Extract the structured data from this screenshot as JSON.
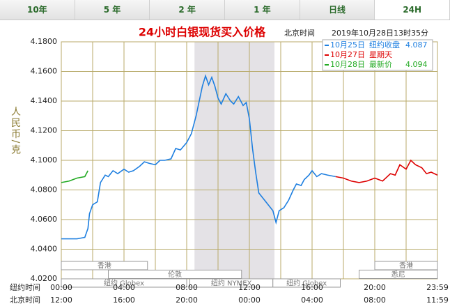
{
  "tabs": [
    "10年",
    "5 年",
    "2 年",
    "1 年",
    "日线",
    "24H"
  ],
  "active_tab": 5,
  "chart_data": {
    "type": "line",
    "title": "24小时白银现货买入价格",
    "time_zone": "北京时间",
    "timestamp": "2019年10月28日13时35分",
    "y_label": "人民币/克",
    "xlim": [
      0,
      24
    ],
    "ylim": [
      4.02,
      4.18
    ],
    "yticks": [
      {
        "value": 4.02,
        "label": "4.0200"
      },
      {
        "value": 4.04,
        "label": "4.0400"
      },
      {
        "value": 4.06,
        "label": "4.0600"
      },
      {
        "value": 4.08,
        "label": "4.0800"
      },
      {
        "value": 4.1,
        "label": "4.1000"
      },
      {
        "value": 4.12,
        "label": "4.1200"
      },
      {
        "value": 4.14,
        "label": "4.1400"
      },
      {
        "value": 4.16,
        "label": "4.1600"
      },
      {
        "value": 4.18,
        "label": "4.1800"
      }
    ],
    "xgrid": [
      0,
      2,
      4,
      6,
      8,
      10,
      12,
      14,
      16,
      18,
      20,
      22,
      24
    ],
    "x_row_labels": [
      "纽约时间",
      "北京时间"
    ],
    "xticks": [
      {
        "value": 0,
        "label": "00:00"
      },
      {
        "value": 4,
        "label": "04:00"
      },
      {
        "value": 8,
        "label": "08:00"
      },
      {
        "value": 12,
        "label": "12:00"
      },
      {
        "value": 16,
        "label": "16:00"
      },
      {
        "value": 20,
        "label": "20:00"
      },
      {
        "value": 24,
        "label": "23:59"
      }
    ],
    "xticks2": [
      {
        "value": 0,
        "label": "12:00"
      },
      {
        "value": 4,
        "label": "16:00"
      },
      {
        "value": 8,
        "label": "20:00"
      },
      {
        "value": 12,
        "label": "00:00"
      },
      {
        "value": 16,
        "label": "04:00"
      },
      {
        "value": 20,
        "label": "08:00"
      },
      {
        "value": 24,
        "label": "11:59"
      }
    ],
    "shaded_span": [
      8.5,
      13.6
    ],
    "sessions": [
      {
        "name": "香港",
        "start": 0,
        "end": 5.5,
        "row": 0
      },
      {
        "name": "伦敦",
        "start": 3,
        "end": 11.5,
        "row": 1
      },
      {
        "name": "纽约 Globex",
        "start": 0,
        "end": 8,
        "row": 2
      },
      {
        "name": "纽约 NYMEX",
        "start": 8.2,
        "end": 13.5,
        "row": 2
      },
      {
        "name": "纽约 Globex",
        "start": 13.5,
        "end": 17.8,
        "row": 2
      },
      {
        "name": "悉尼",
        "start": 19,
        "end": 24,
        "row": 1
      },
      {
        "name": "香港",
        "start": 20,
        "end": 24,
        "row": 0
      }
    ],
    "series": [
      {
        "name": "10月25日",
        "note": "纽约收盘",
        "latest": 4.087,
        "color": "#1e7fe0",
        "x": [
          0,
          0.5,
          1,
          1.5,
          1.7,
          1.8,
          2,
          2.3,
          2.5,
          2.8,
          3,
          3.3,
          3.6,
          4,
          4.3,
          4.6,
          5,
          5.3,
          5.6,
          6,
          6.3,
          6.6,
          7,
          7.3,
          7.6,
          8,
          8.3,
          8.6,
          8.8,
          9,
          9.2,
          9.4,
          9.6,
          9.8,
          10,
          10.2,
          10.5,
          10.8,
          11,
          11.3,
          11.6,
          11.8,
          12,
          12.2,
          12.4,
          12.6,
          12.9,
          13.2,
          13.5,
          13.7,
          13.9,
          14.2,
          14.5,
          14.8,
          15,
          15.3,
          15.5,
          15.8,
          16,
          16.3,
          16.6,
          17,
          17.5
        ],
        "values": [
          4.047,
          4.047,
          4.047,
          4.048,
          4.054,
          4.064,
          4.07,
          4.072,
          4.085,
          4.09,
          4.089,
          4.093,
          4.091,
          4.094,
          4.092,
          4.093,
          4.096,
          4.099,
          4.098,
          4.097,
          4.1,
          4.1,
          4.101,
          4.108,
          4.107,
          4.112,
          4.118,
          4.13,
          4.14,
          4.15,
          4.157,
          4.151,
          4.156,
          4.15,
          4.142,
          4.138,
          4.145,
          4.14,
          4.138,
          4.143,
          4.137,
          4.139,
          4.128,
          4.108,
          4.092,
          4.078,
          4.074,
          4.07,
          4.066,
          4.058,
          4.066,
          4.068,
          4.073,
          4.08,
          4.084,
          4.083,
          4.087,
          4.09,
          4.093,
          4.089,
          4.091,
          4.09,
          4.089
        ]
      },
      {
        "name": "10月27日",
        "note": "星期天",
        "color": "#dd0000",
        "x": [
          17.5,
          18,
          18.5,
          19,
          19.5,
          20,
          20.5,
          21,
          21.3,
          21.6,
          22,
          22.3,
          22.6,
          23,
          23.3,
          23.6,
          24
        ],
        "values": [
          4.089,
          4.088,
          4.086,
          4.085,
          4.086,
          4.088,
          4.086,
          4.091,
          4.09,
          4.097,
          4.094,
          4.1,
          4.097,
          4.095,
          4.091,
          4.092,
          4.09
        ]
      },
      {
        "name": "10月28日",
        "note": "最新价",
        "latest": 4.094,
        "color": "#22aa22",
        "x": [
          0,
          0.5,
          1,
          1.5,
          1.7
        ],
        "values": [
          4.085,
          4.086,
          4.088,
          4.089,
          4.093
        ]
      }
    ]
  }
}
